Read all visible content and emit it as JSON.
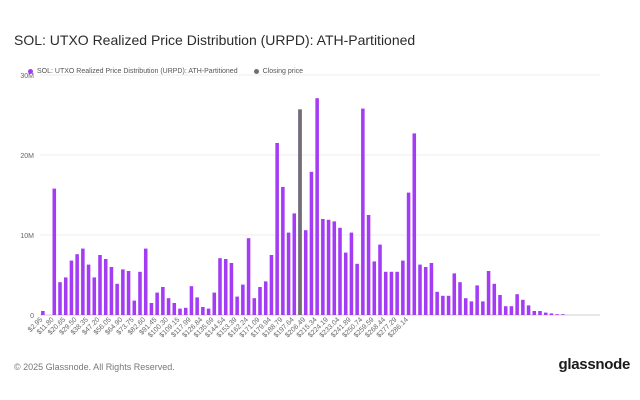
{
  "header": {
    "title": "SOL: UTXO Realized Price Distribution (URPD): ATH-Partitioned"
  },
  "legend": {
    "items": [
      {
        "label": "SOL: UTXO Realized Price Distribution (URPD): ATH-Partitioned",
        "color": "#a43cf5"
      },
      {
        "label": "Closing price",
        "color": "#707070"
      }
    ]
  },
  "footer": {
    "copyright": "© 2025 Glassnode. All Rights Reserved.",
    "brand": "glassnode"
  },
  "chart_data": {
    "type": "bar",
    "y_ticks": [
      "0",
      "10M",
      "20M",
      "30M"
    ],
    "ylim": [
      0,
      30000000
    ],
    "x_tick_labels": [
      "$2.95",
      "$11.80",
      "$20.65",
      "$29.50",
      "$38.35",
      "$47.20",
      "$56.05",
      "$64.90",
      "$73.75",
      "$82.60",
      "$91.45",
      "$100.30",
      "$109.15",
      "$117.99",
      "$126.84",
      "$135.69",
      "$144.54",
      "$153.39",
      "$162.24",
      "$171.09",
      "$179.94",
      "$188.79",
      "$197.64",
      "$206.49",
      "$215.34",
      "$224.19",
      "$233.04",
      "$241.89",
      "$250.74",
      "$259.59",
      "$268.44",
      "$277.29",
      "$286.14"
    ],
    "bins_per_tick": 2,
    "closing_price_bin": 45,
    "series": [
      {
        "name": "SOL: UTXO Realized Price Distribution (URPD): ATH-Partitioned",
        "color": "#a43cf5",
        "values": [
          0.5,
          0,
          15.8,
          4.1,
          4.7,
          6.8,
          7.6,
          8.3,
          6.3,
          4.7,
          7.5,
          7.0,
          6.0,
          3.9,
          5.7,
          5.5,
          1.8,
          5.4,
          8.3,
          1.5,
          2.8,
          3.5,
          2.1,
          1.5,
          0.8,
          0.9,
          3.6,
          2.2,
          1.0,
          0.8,
          2.8,
          7.1,
          7.0,
          6.5,
          2.3,
          3.8,
          9.6,
          2.1,
          3.5,
          4.2,
          7.5,
          21.5,
          16.0,
          10.3,
          12.7,
          25.7,
          10.6,
          17.9,
          27.1,
          12.0,
          11.9,
          11.7,
          10.9,
          7.8,
          10.3,
          6.4,
          25.8,
          12.5,
          6.7,
          8.8,
          5.4,
          5.4,
          5.4,
          6.8,
          15.3,
          22.7,
          6.3,
          6.0,
          6.5,
          2.9,
          2.4,
          2.4,
          5.2,
          4.1,
          2.1,
          1.7,
          3.7,
          1.7,
          5.5,
          3.9,
          2.5,
          1.1,
          1.1,
          2.6,
          1.9,
          1.2,
          0.5,
          0.5,
          0.3,
          0.2,
          0.1,
          0.1,
          0,
          0,
          0,
          0,
          0,
          0
        ]
      },
      {
        "name": "Closing price",
        "color": "#707070",
        "values_note": "single bar at closing price bin",
        "value": 25.7
      }
    ]
  }
}
